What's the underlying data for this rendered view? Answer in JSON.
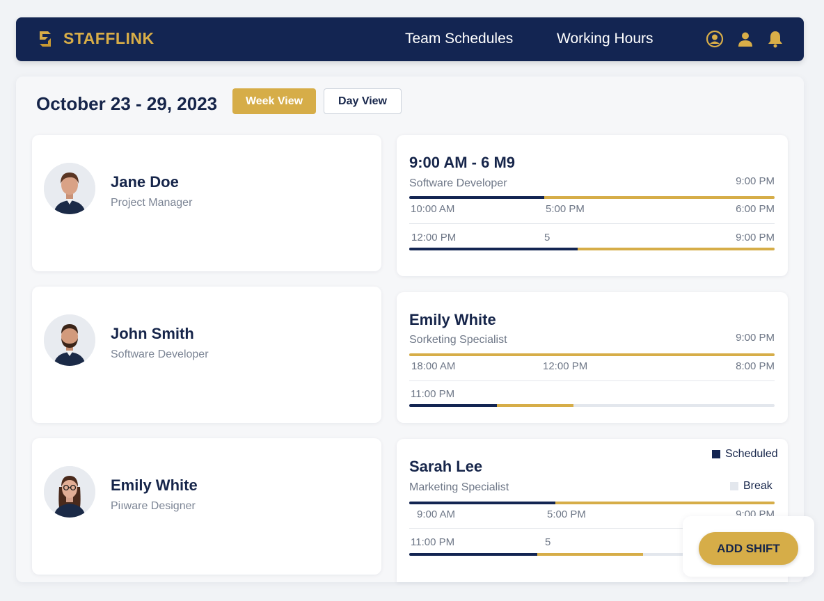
{
  "app": {
    "brand": "STAFFLINK",
    "nav": [
      "Team Schedules",
      "Working Hours"
    ],
    "icons": [
      "account-circle-icon",
      "person-icon",
      "bell-icon"
    ]
  },
  "colors": {
    "navy": "#132552",
    "gold": "#d6ad48",
    "track": "#e3e7ed"
  },
  "header": {
    "date_range": "October 23 - 29, 2023",
    "week_view": "Week View",
    "day_view": "Day View",
    "active_view": "Week View"
  },
  "employees": [
    {
      "name": "Jane Doe",
      "role": "Project Manager"
    },
    {
      "name": "John Smith",
      "role": "Software Developer"
    },
    {
      "name": "Emily White",
      "role": "Piıware Designer"
    }
  ],
  "schedules": [
    {
      "title": "9:00 AM - 6 M9",
      "subtitle": "Software Developer",
      "right_time": "9:00 PM",
      "row1": [
        "10:00 AM",
        "5:00 PM",
        "6:00 PM"
      ],
      "row2": [
        "12:00 PM",
        "5",
        "9:00 PM"
      ],
      "bar1": {
        "navy": 0.37,
        "gold": 1.0
      },
      "bar2": {
        "navy": 0.46,
        "gold": 1.0
      }
    },
    {
      "title": "Emily White",
      "subtitle": "Sorketing Specialist",
      "right_time": "9:00 PM",
      "row1": [
        "18:00 AM",
        "12:00 PM",
        "8:00 PM"
      ],
      "row2": [
        "11:00 PM"
      ],
      "bar1": {
        "navy": 0.0,
        "gold": 1.0
      },
      "bar2": {
        "navy": 0.24,
        "gold": 0.45
      }
    },
    {
      "title": "Sarah Lee",
      "subtitle": "Marketing Specialist",
      "row1": [
        "9:00 AM",
        "5:00 PM",
        "9:00 PM"
      ],
      "row2": [
        "11:00 PM",
        "5"
      ],
      "bar1": {
        "navy": 0.4,
        "gold": 1.0
      },
      "bar2": {
        "navy": 0.35,
        "gold": 0.64
      }
    }
  ],
  "legend": {
    "scheduled": "Scheduled",
    "break": "Break"
  },
  "actions": {
    "add_shift": "ADD SHIFT"
  }
}
